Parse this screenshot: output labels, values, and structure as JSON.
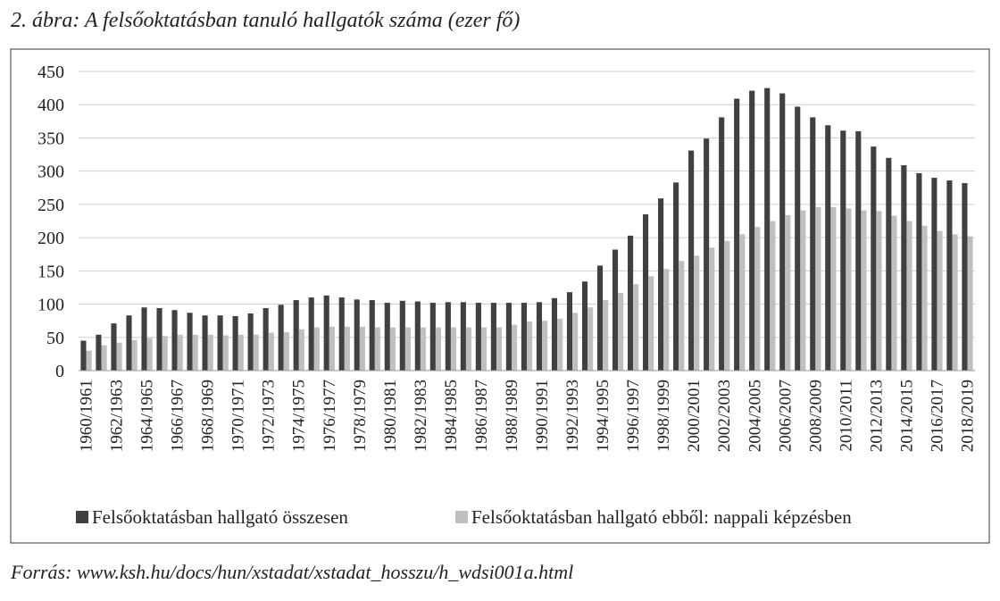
{
  "chart_data": {
    "type": "bar",
    "title": "2. ábra: A felsőoktatásban tanuló hallgatók száma (ezer fő)",
    "source": "Forrás: www.ksh.hu/docs/hun/xstadat/xstadat_hosszu/h_wdsi001a.html",
    "categories": [
      "1960/1961",
      null,
      "1962/1963",
      null,
      "1964/1965",
      null,
      "1966/1967",
      null,
      "1968/1969",
      null,
      "1970/1971",
      null,
      "1972/1973",
      null,
      "1974/1975",
      null,
      "1976/1977",
      null,
      "1978/1979",
      null,
      "1980/1981",
      null,
      "1982/1983",
      null,
      "1984/1985",
      null,
      "1986/1987",
      null,
      "1988/1989",
      null,
      "1990/1991",
      null,
      "1992/1993",
      null,
      "1994/1995",
      null,
      "1996/1997",
      null,
      "1998/1999",
      null,
      "2000/2001",
      null,
      "2002/2003",
      null,
      "2004/2005",
      null,
      "2006/2007",
      null,
      "2008/2009",
      null,
      "2010/2011",
      null,
      "2012/2013",
      null,
      "2014/2015",
      null,
      "2016/2017",
      null,
      "2018/2019"
    ],
    "series": [
      {
        "name": "Felsőoktatásban hallgató összesen",
        "color": "#404040",
        "values": [
          45,
          54,
          71,
          83,
          95,
          94,
          91,
          87,
          83,
          83,
          82,
          86,
          94,
          99,
          106,
          110,
          113,
          110,
          107,
          106,
          102,
          105,
          104,
          102,
          103,
          103,
          102,
          102,
          102,
          102,
          103,
          109,
          118,
          134,
          158,
          182,
          203,
          235,
          259,
          283,
          331,
          349,
          381,
          409,
          421,
          425,
          417,
          397,
          381,
          369,
          361,
          360,
          337,
          320,
          309,
          297,
          290,
          286,
          282
        ]
      },
      {
        "name": "Felsőoktatásban hallgató ebből: nappali képzésben",
        "color": "#bfbfbf",
        "values": [
          30,
          38,
          42,
          46,
          49,
          52,
          54,
          54,
          54,
          53,
          54,
          54,
          57,
          58,
          62,
          65,
          66,
          66,
          66,
          65,
          65,
          65,
          65,
          65,
          65,
          65,
          65,
          65,
          69,
          74,
          75,
          78,
          87,
          95,
          106,
          117,
          130,
          142,
          153,
          165,
          173,
          185,
          195,
          205,
          216,
          225,
          234,
          241,
          246,
          246,
          244,
          241,
          240,
          233,
          225,
          218,
          210,
          205,
          202
        ]
      }
    ],
    "ylim": [
      0,
      450
    ],
    "yticks": [
      0,
      50,
      100,
      150,
      200,
      250,
      300,
      350,
      400,
      450
    ],
    "grid": true
  }
}
